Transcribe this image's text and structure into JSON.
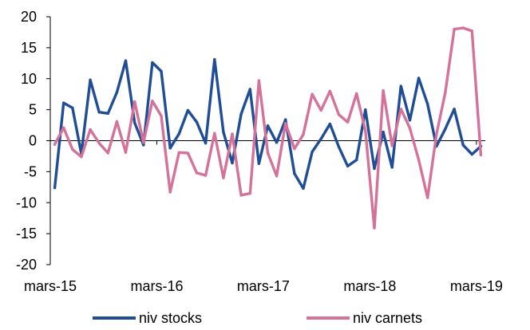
{
  "chart_data": {
    "type": "line",
    "title": "",
    "xlabel": "",
    "ylabel": "",
    "ylim": [
      -20,
      20
    ],
    "yticks": [
      20,
      15,
      10,
      5,
      0,
      -5,
      -10,
      -15,
      -20
    ],
    "xtick_labels": [
      "mars-15",
      "mars-16",
      "mars-17",
      "mars-18",
      "mars-19"
    ],
    "grid": false,
    "legend_position": "bottom",
    "x": [
      "mars-15",
      "avr-15",
      "mai-15",
      "juin-15",
      "juil-15",
      "août-15",
      "sept-15",
      "oct-15",
      "nov-15",
      "déc-15",
      "janv-16",
      "févr-16",
      "mars-16",
      "avr-16",
      "mai-16",
      "juin-16",
      "juil-16",
      "août-16",
      "sept-16",
      "oct-16",
      "nov-16",
      "déc-16",
      "janv-17",
      "févr-17",
      "mars-17",
      "avr-17",
      "mai-17",
      "juin-17",
      "juil-17",
      "août-17",
      "sept-17",
      "oct-17",
      "nov-17",
      "déc-17",
      "janv-18",
      "févr-18",
      "mars-18",
      "avr-18",
      "mai-18",
      "juin-18",
      "juil-18",
      "août-18",
      "sept-18",
      "oct-18",
      "nov-18",
      "déc-18",
      "janv-19",
      "févr-19",
      "mars-19"
    ],
    "series": [
      {
        "name": "niv stocks",
        "color": "#1f4e96",
        "values": [
          -7.6,
          6.1,
          5.3,
          -2.1,
          9.8,
          4.6,
          4.4,
          7.8,
          12.9,
          2.9,
          -0.7,
          12.6,
          11.2,
          -1.2,
          1.1,
          4.9,
          3.0,
          -0.4,
          13.1,
          1.4,
          -3.6,
          4.3,
          8.3,
          -3.7,
          2.4,
          -0.3,
          3.4,
          -5.3,
          -7.7,
          -1.8,
          0.3,
          2.7,
          -1.0,
          -4.1,
          -3.1,
          5.0,
          -4.5,
          1.4,
          -4.3,
          8.8,
          3.3,
          10.1,
          5.9,
          -0.9,
          1.9,
          5.1,
          -0.7,
          -2.2,
          -0.9
        ]
      },
      {
        "name": "niv carnets",
        "color": "#d4729a",
        "values": [
          -0.6,
          2.1,
          -1.4,
          -2.6,
          1.8,
          -0.4,
          -2.0,
          3.1,
          -1.9,
          6.3,
          -0.3,
          6.4,
          4.0,
          -8.3,
          -1.9,
          -2.0,
          -5.2,
          -5.6,
          1.2,
          -6.0,
          1.1,
          -8.8,
          -8.5,
          9.7,
          -2.0,
          -5.7,
          2.8,
          -1.3,
          1.0,
          7.5,
          4.9,
          8.0,
          4.2,
          3.0,
          7.6,
          1.6,
          -14.1,
          8.1,
          -0.8,
          5.1,
          2.0,
          -3.1,
          -9.2,
          1.0,
          7.8,
          18.0,
          18.2,
          17.7,
          -2.3
        ]
      }
    ]
  }
}
